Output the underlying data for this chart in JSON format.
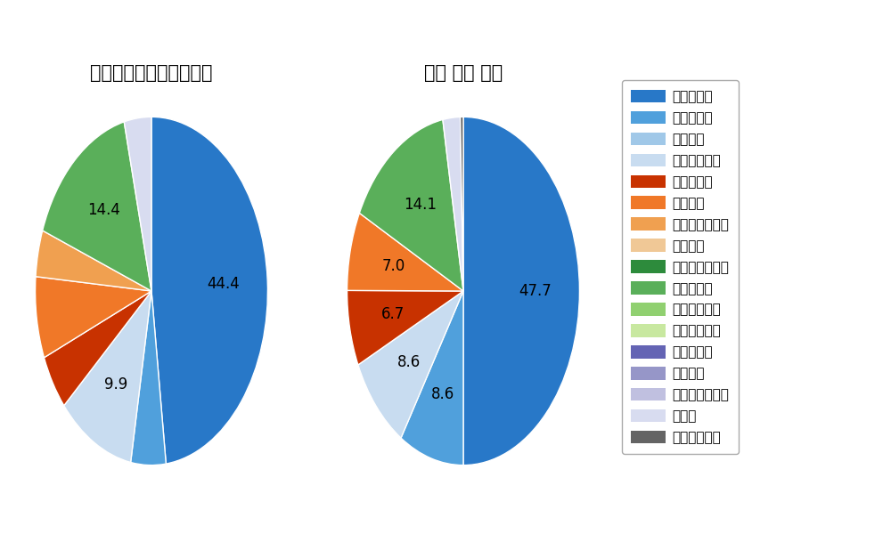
{
  "left_title": "パ・リーグ全プレイヤー",
  "right_title": "今宮 健太 選手",
  "pitch_types": [
    "ストレート",
    "ツーシーム",
    "シュート",
    "カットボール",
    "スプリット",
    "フォーク",
    "チェンジアップ",
    "シンカー",
    "高速スライダー",
    "スライダー",
    "縦スライダー",
    "パワーカーブ",
    "スクリュー",
    "ナックル",
    "ナックルカーブ",
    "カーブ",
    "スローカーブ"
  ],
  "colors": [
    "#2878C8",
    "#50A0DC",
    "#A0C8E8",
    "#C8DCF0",
    "#C83200",
    "#F07828",
    "#F0A050",
    "#F0C896",
    "#2D8B3C",
    "#5AAF5A",
    "#90D070",
    "#C8E8A0",
    "#6464B4",
    "#9696C8",
    "#C0C0E0",
    "#D8DCF0",
    "#646464"
  ],
  "left_values": [
    44.4,
    4.5,
    0.0,
    9.9,
    4.8,
    7.0,
    4.0,
    0.0,
    0.0,
    14.4,
    0.0,
    0.0,
    0.0,
    0.0,
    0.0,
    3.5,
    0.0
  ],
  "right_values": [
    47.7,
    8.6,
    0.0,
    8.6,
    6.7,
    7.0,
    0.0,
    0.0,
    0.0,
    14.1,
    0.0,
    0.0,
    0.0,
    0.0,
    0.0,
    2.3,
    0.4
  ],
  "left_labels": [
    "44.4",
    "",
    "",
    "9.9",
    "",
    "",
    "",
    "",
    "",
    "14.4",
    "",
    "",
    "",
    "",
    "",
    "",
    ""
  ],
  "right_labels": [
    "47.7",
    "8.6",
    "",
    "8.6",
    "6.7",
    "7.0",
    "",
    "",
    "",
    "14.1",
    "",
    "",
    "",
    "",
    "",
    "",
    ""
  ],
  "label_fontsize": 12,
  "title_fontsize": 15,
  "legend_fontsize": 11,
  "bg_color": "#ffffff"
}
